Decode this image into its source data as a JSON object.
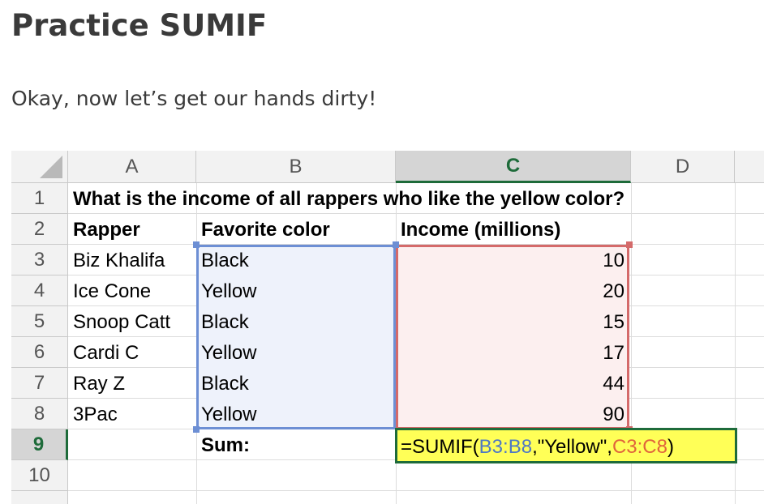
{
  "page": {
    "title": "Practice SUMIF",
    "subtitle": "Okay, now let’s get our hands dirty!"
  },
  "sheet": {
    "columns": [
      "A",
      "B",
      "C",
      "D"
    ],
    "rows": [
      "1",
      "2",
      "3",
      "4",
      "5",
      "6",
      "7",
      "8",
      "9",
      "10"
    ],
    "selected_column": "C",
    "selected_row": "9",
    "question": "What is the income of all rappers who like the yellow color?",
    "headers": {
      "rapper": "Rapper",
      "color": "Favorite color",
      "income": "Income (millions)"
    },
    "data_rows": [
      {
        "rapper": "Biz Khalifa",
        "color": "Black",
        "income": "10"
      },
      {
        "rapper": "Ice Cone",
        "color": "Yellow",
        "income": "20"
      },
      {
        "rapper": "Snoop Catt",
        "color": "Black",
        "income": "15"
      },
      {
        "rapper": "Cardi C",
        "color": "Yellow",
        "income": "17"
      },
      {
        "rapper": "Ray Z",
        "color": "Black",
        "income": "44"
      },
      {
        "rapper": "3Pac",
        "color": "Yellow",
        "income": "90"
      }
    ],
    "sum_label": "Sum:",
    "formula": {
      "start": "=SUMIF(",
      "range": "B3:B8",
      "sep1": ",",
      "criteria": "\"Yellow\"",
      "sep2": ",",
      "sum_range": "C3:C8",
      "end": ")"
    },
    "colors": {
      "accent": "#1e6b3a",
      "range_b": "#6d8fd4",
      "range_c": "#d46a6a",
      "active_fill": "#ffff57"
    }
  }
}
